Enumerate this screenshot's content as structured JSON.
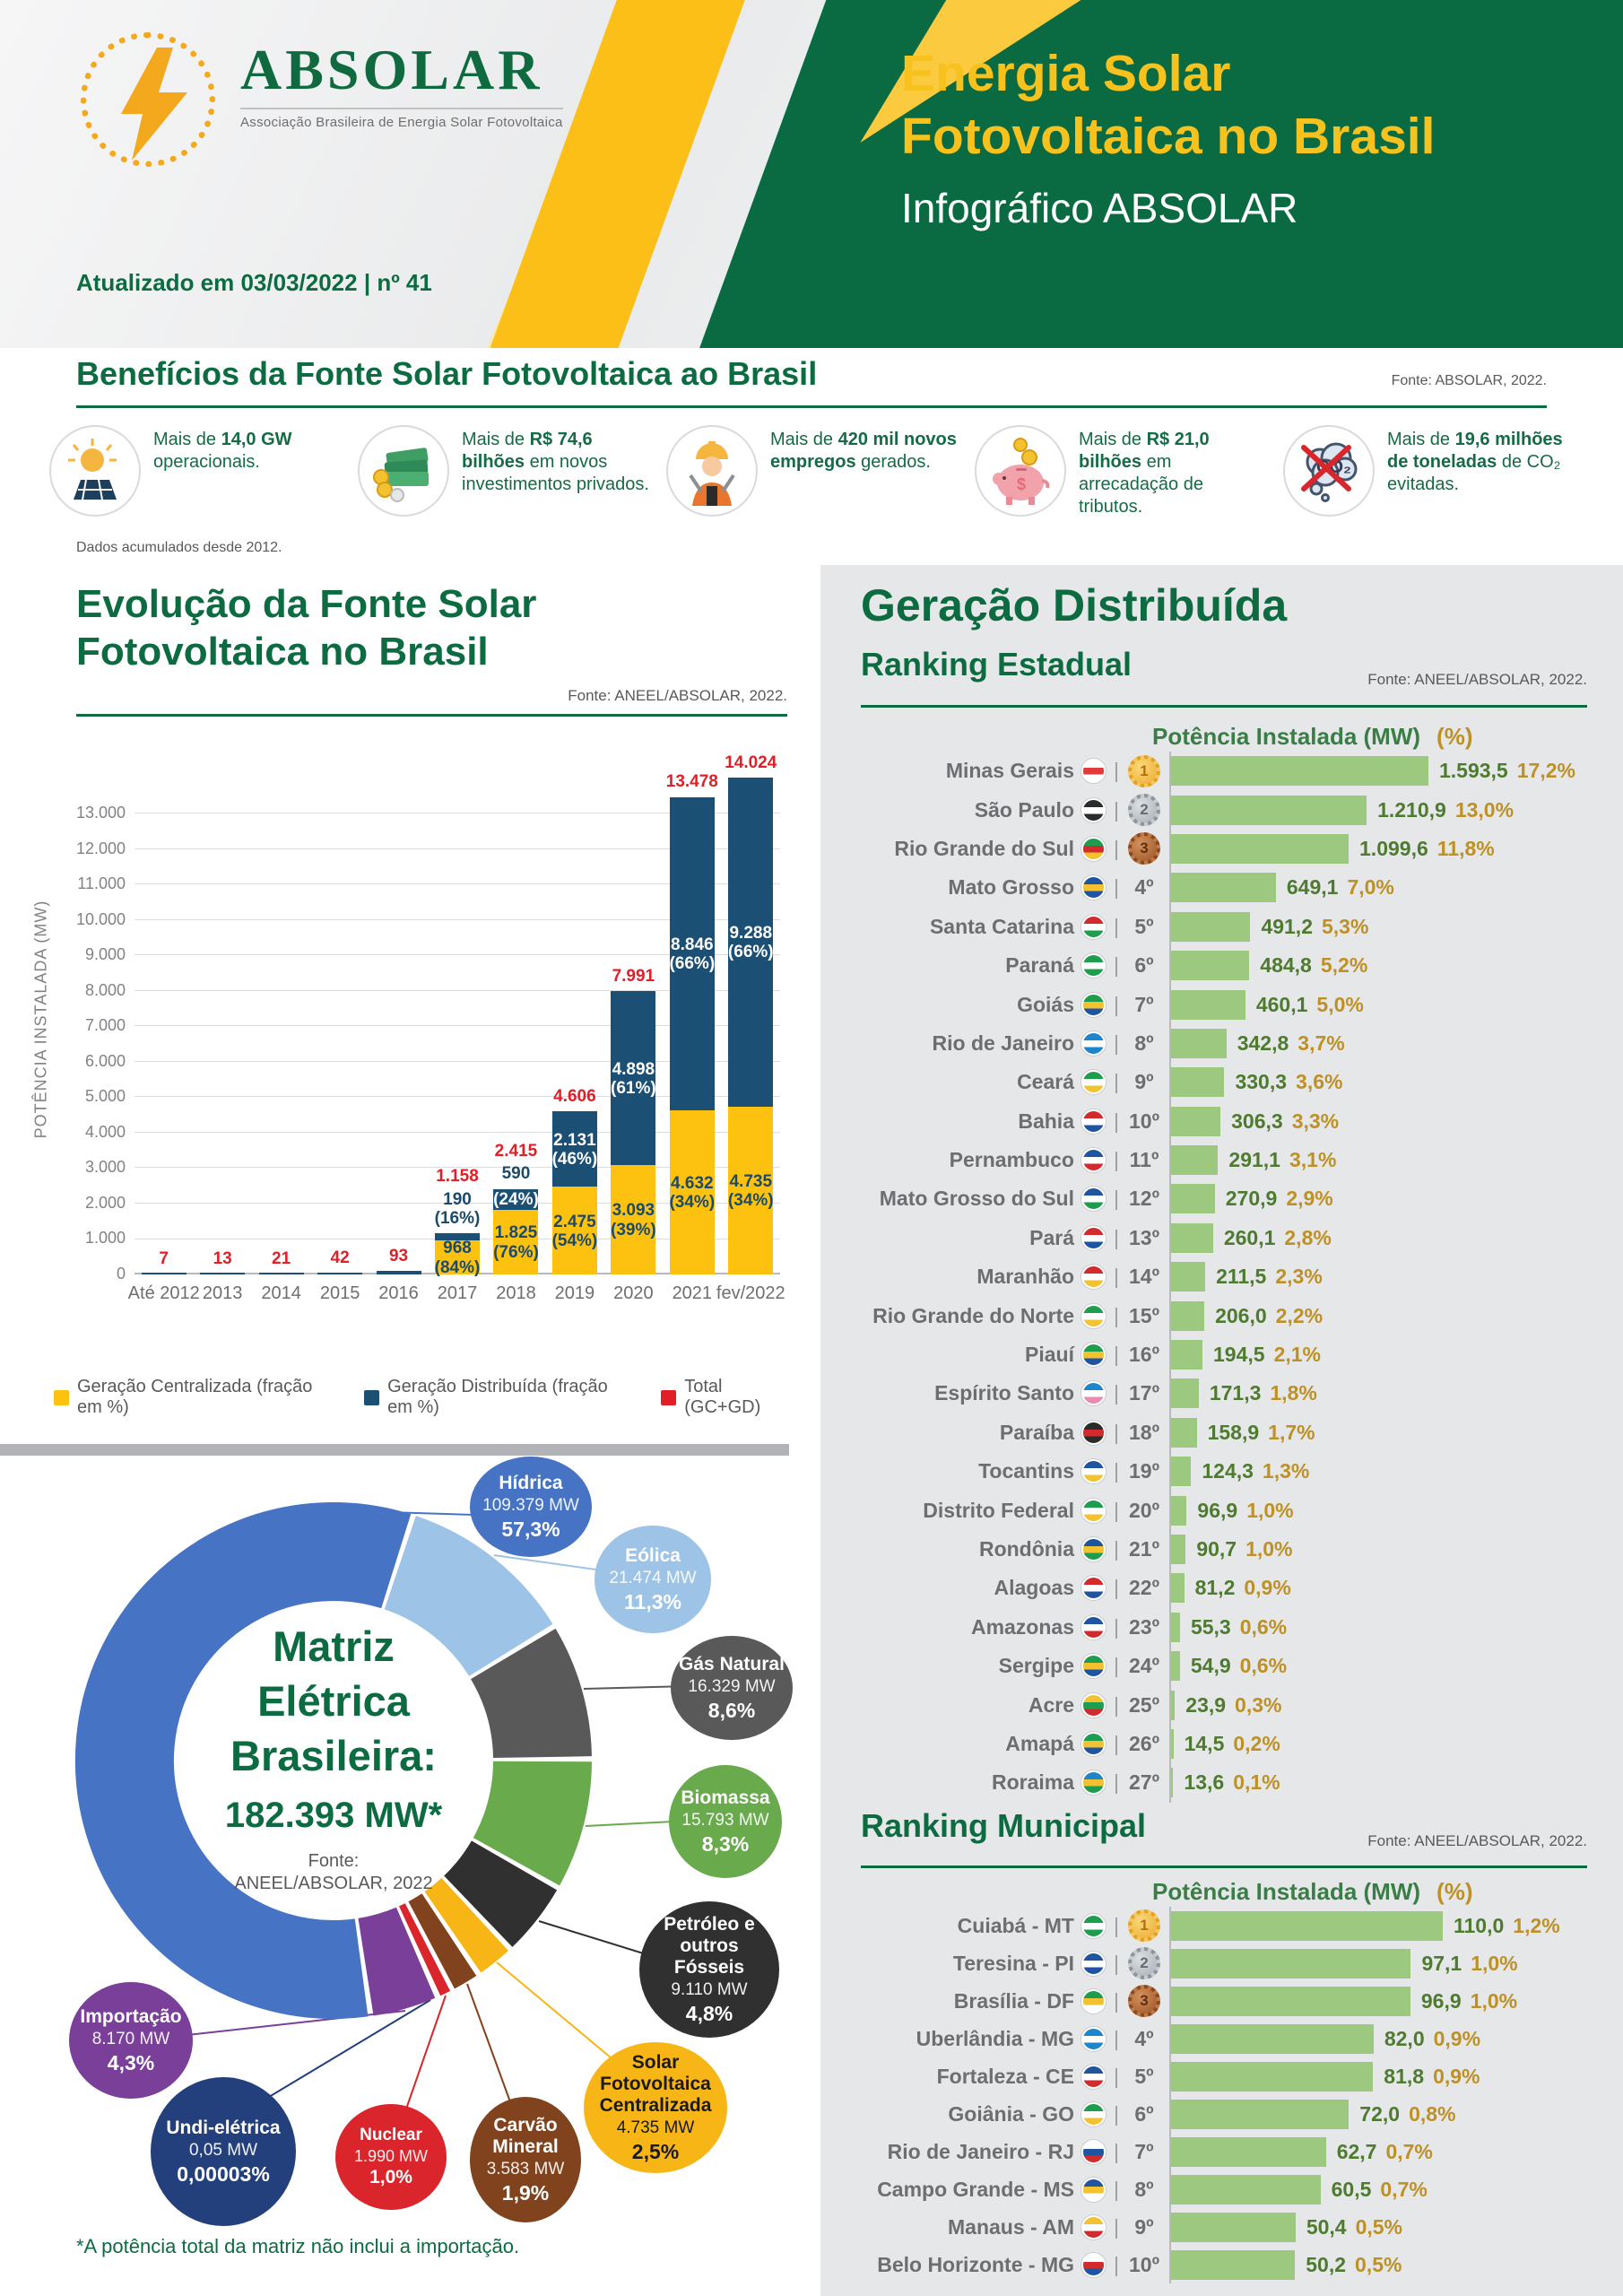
{
  "header": {
    "logo_name": "ABSOLAR",
    "logo_subtitle": "Associação Brasileira de Energia Solar Fotovoltaica",
    "updated": "Atualizado em 03/03/2022 | nº 41",
    "title_line1": "Energia Solar",
    "title_line2": "Fotovoltaica no Brasil",
    "title_line3": "Infográfico ABSOLAR",
    "brand_green": "#0a6a41",
    "brand_yellow": "#fbbf17"
  },
  "benefits": {
    "heading": "Benefícios da Fonte Solar Fotovoltaica ao Brasil",
    "source": "Fonte: ABSOLAR, 2022.",
    "note": "Dados acumulados desde 2012.",
    "items": [
      {
        "icon": "solar-panel-sun-icon",
        "segments": [
          {
            "t": "Mais de ",
            "b": false
          },
          {
            "t": "14,0 GW",
            "b": true
          },
          {
            "t": " operacionais.",
            "b": false
          }
        ]
      },
      {
        "icon": "money-stack-icon",
        "segments": [
          {
            "t": "Mais de ",
            "b": false
          },
          {
            "t": "R$ 74,6 bilhões",
            "b": true
          },
          {
            "t": " em novos investimentos privados.",
            "b": false
          }
        ]
      },
      {
        "icon": "worker-icon",
        "segments": [
          {
            "t": "Mais de ",
            "b": false
          },
          {
            "t": "420 mil novos empregos",
            "b": true
          },
          {
            "t": " gerados.",
            "b": false
          }
        ]
      },
      {
        "icon": "piggy-bank-icon",
        "segments": [
          {
            "t": "Mais de ",
            "b": false
          },
          {
            "t": "R$ 21,0 bilhões",
            "b": true
          },
          {
            "t": " em arrecadação de tributos.",
            "b": false
          }
        ]
      },
      {
        "icon": "co2-avoided-icon",
        "segments": [
          {
            "t": "Mais de ",
            "b": false
          },
          {
            "t": "19,6 milhões de toneladas",
            "b": true
          },
          {
            "t": " de CO₂ evitadas.",
            "b": false
          }
        ]
      }
    ]
  },
  "evolution": {
    "heading_line1": "Evolução da Fonte Solar",
    "heading_line2": "Fotovoltaica no Brasil",
    "source": "Fonte: ANEEL/ABSOLAR, 2022.",
    "chart_data": {
      "type": "bar",
      "stacked": true,
      "title": "Evolução da Fonte Solar Fotovoltaica no Brasil",
      "xlabel": "",
      "ylabel": "POTÊNCIA INSTALADA  (MW)",
      "ylim": [
        0,
        14200
      ],
      "y_tick_step": 1000,
      "y_tick_max": 13000,
      "grid": true,
      "legend_position": "bottom",
      "categories": [
        "Até 2012",
        "2013",
        "2014",
        "2015",
        "2016",
        "2017",
        "2018",
        "2019",
        "2020",
        "2021",
        "fev/2022"
      ],
      "series": [
        {
          "name": "Geração Centralizada (fração em %)",
          "color": "#fdc20f",
          "values": [
            0,
            0,
            0,
            0,
            0,
            968,
            1825,
            2475,
            3093,
            4632,
            4735
          ],
          "labels": [
            "",
            "",
            "",
            "",
            "",
            "968",
            "1.825",
            "2.475",
            "3.093",
            "4.632",
            "4.735"
          ],
          "pcts": [
            "",
            "",
            "",
            "",
            "",
            "(84%)",
            "(76%)",
            "(54%)",
            "(39%)",
            "(34%)",
            "(34%)"
          ]
        },
        {
          "name": "Geração Distribuída (fração em %)",
          "color": "#1c4f74",
          "values": [
            0,
            0,
            0,
            0,
            0,
            190,
            590,
            2131,
            4898,
            8846,
            9288
          ],
          "labels": [
            "",
            "",
            "",
            "",
            "",
            "190",
            "590",
            "2.131",
            "4.898",
            "8.846",
            "9.288"
          ],
          "pcts": [
            "",
            "",
            "",
            "",
            "",
            "(16%)",
            "(24%)",
            "(46%)",
            "(61%)",
            "(66%)",
            "(66%)"
          ]
        }
      ],
      "totals": {
        "name": "Total (GC+GD)",
        "color": "#e21e26",
        "values": [
          7,
          13,
          21,
          42,
          93,
          1158,
          2415,
          4606,
          7991,
          13478,
          14024
        ],
        "labels": [
          "7",
          "13",
          "21",
          "42",
          "93",
          "1.158",
          "2.415",
          "4.606",
          "7.991",
          "13.478",
          "14.024"
        ]
      }
    }
  },
  "matrix": {
    "chart_data": {
      "type": "pie",
      "donut": true,
      "title_lines": [
        "Matriz",
        "Elétrica",
        "Brasileira:"
      ],
      "total_label": "182.393 MW*",
      "source_line1": "Fonte:",
      "source_line2": "ANEEL/ABSOLAR, 2022",
      "footnote": "*A potência total da matriz não inclui a importação.",
      "start_angle_deg": 18,
      "segments": [
        {
          "id": "hidrica",
          "label": "Hídrica",
          "mw": "109.379 MW",
          "pct": "57,3%",
          "value": 57.3,
          "color": "#4673c4"
        },
        {
          "id": "eolica",
          "label": "Eólica",
          "mw": "21.474 MW",
          "pct": "11,3%",
          "value": 11.3,
          "color": "#9dc3e6"
        },
        {
          "id": "gas",
          "label": "Gás Natural",
          "mw": "16.329 MW",
          "pct": "8,6%",
          "value": 8.6,
          "color": "#595959"
        },
        {
          "id": "biomassa",
          "label": "Biomassa",
          "mw": "15.793 MW",
          "pct": "8,3%",
          "value": 8.3,
          "color": "#69aa4c"
        },
        {
          "id": "petroleo",
          "label": "Petróleo e outros Fósseis",
          "mw": "9.110 MW",
          "pct": "4,8%",
          "value": 4.8,
          "color": "#303030"
        },
        {
          "id": "solar",
          "label": "Solar Fotovoltaica Centralizada",
          "mw": "4.735 MW",
          "pct": "2,5%",
          "value": 2.5,
          "color": "#f7b516"
        },
        {
          "id": "carvao",
          "label": "Carvão Mineral",
          "mw": "3.583 MW",
          "pct": "1,9%",
          "value": 1.9,
          "color": "#80431d"
        },
        {
          "id": "nuclear",
          "label": "Nuclear",
          "mw": "1.990 MW",
          "pct": "1,0%",
          "value": 1.0,
          "color": "#d9252b"
        },
        {
          "id": "undi",
          "label": "Undi-elétrica",
          "mw": "0,05 MW",
          "pct": "0,00003%",
          "value": 0,
          "color": "#24407c"
        },
        {
          "id": "importacao",
          "label": "Importação",
          "mw": "8.170 MW",
          "pct": "4,3%",
          "value": 4.3,
          "color": "#7a3f98"
        }
      ]
    }
  },
  "distributed": {
    "heading": "Geração Distribuída",
    "state_ranking": {
      "title": "Ranking Estadual",
      "source": "Fonte: ANEEL/ABSOLAR, 2022.",
      "col_mw": "Potência Instalada (MW)",
      "col_pct": "(%)",
      "rows": [
        {
          "name": "Minas Gerais",
          "rank": 1,
          "mw": 1593.5,
          "mw_label": "1.593,5",
          "pct": "17,2%",
          "flag": [
            "#ffffff",
            "#e03a3a",
            "#ffffff"
          ]
        },
        {
          "name": "São Paulo",
          "rank": 2,
          "mw": 1210.9,
          "mw_label": "1.210,9",
          "pct": "13,0%",
          "flag": [
            "#2b2b2b",
            "#ffffff",
            "#2b2b2b"
          ]
        },
        {
          "name": "Rio Grande do Sul",
          "rank": 3,
          "mw": 1099.6,
          "mw_label": "1.099,6",
          "pct": "11,8%",
          "flag": [
            "#1f9d4e",
            "#d12b2e",
            "#f2c230"
          ]
        },
        {
          "name": "Mato Grosso",
          "rank": 4,
          "mw": 649.1,
          "mw_label": "649,1",
          "pct": "7,0%",
          "flag": [
            "#1e54a0",
            "#f2c230",
            "#1e54a0"
          ]
        },
        {
          "name": "Santa Catarina",
          "rank": 5,
          "mw": 491.2,
          "mw_label": "491,2",
          "pct": "5,3%",
          "flag": [
            "#d12b2e",
            "#ffffff",
            "#1f9d4e"
          ]
        },
        {
          "name": "Paraná",
          "rank": 6,
          "mw": 484.8,
          "mw_label": "484,8",
          "pct": "5,2%",
          "flag": [
            "#1f9d4e",
            "#ffffff",
            "#1f9d4e"
          ]
        },
        {
          "name": "Goiás",
          "rank": 7,
          "mw": 460.1,
          "mw_label": "460,1",
          "pct": "5,0%",
          "flag": [
            "#1f9d4e",
            "#f2c230",
            "#1e54a0"
          ]
        },
        {
          "name": "Rio de Janeiro",
          "rank": 8,
          "mw": 342.8,
          "mw_label": "342,8",
          "pct": "3,7%",
          "flag": [
            "#1e86c8",
            "#ffffff",
            "#1e86c8"
          ]
        },
        {
          "name": "Ceará",
          "rank": 9,
          "mw": 330.3,
          "mw_label": "330,3",
          "pct": "3,6%",
          "flag": [
            "#1f9d4e",
            "#ffffff",
            "#f2c230"
          ]
        },
        {
          "name": "Bahia",
          "rank": 10,
          "mw": 306.3,
          "mw_label": "306,3",
          "pct": "3,3%",
          "flag": [
            "#d12b2e",
            "#ffffff",
            "#1e54a0"
          ]
        },
        {
          "name": "Pernambuco",
          "rank": 11,
          "mw": 291.1,
          "mw_label": "291,1",
          "pct": "3,1%",
          "flag": [
            "#1e54a0",
            "#ffffff",
            "#d12b2e"
          ]
        },
        {
          "name": "Mato Grosso do Sul",
          "rank": 12,
          "mw": 270.9,
          "mw_label": "270,9",
          "pct": "2,9%",
          "flag": [
            "#1e54a0",
            "#ffffff",
            "#1f9d4e"
          ]
        },
        {
          "name": "Pará",
          "rank": 13,
          "mw": 260.1,
          "mw_label": "260,1",
          "pct": "2,8%",
          "flag": [
            "#d12b2e",
            "#ffffff",
            "#1e54a0"
          ]
        },
        {
          "name": "Maranhão",
          "rank": 14,
          "mw": 211.5,
          "mw_label": "211,5",
          "pct": "2,3%",
          "flag": [
            "#d12b2e",
            "#ffffff",
            "#f2c230"
          ]
        },
        {
          "name": "Rio Grande do Norte",
          "rank": 15,
          "mw": 206.0,
          "mw_label": "206,0",
          "pct": "2,2%",
          "flag": [
            "#1f9d4e",
            "#ffffff",
            "#f2c230"
          ]
        },
        {
          "name": "Piauí",
          "rank": 16,
          "mw": 194.5,
          "mw_label": "194,5",
          "pct": "2,1%",
          "flag": [
            "#1f9d4e",
            "#f2c230",
            "#1e54a0"
          ]
        },
        {
          "name": "Espírito Santo",
          "rank": 17,
          "mw": 171.3,
          "mw_label": "171,3",
          "pct": "1,8%",
          "flag": [
            "#1e86c8",
            "#ffffff",
            "#e88bb0"
          ]
        },
        {
          "name": "Paraíba",
          "rank": 18,
          "mw": 158.9,
          "mw_label": "158,9",
          "pct": "1,7%",
          "flag": [
            "#2b2b2b",
            "#d12b2e",
            "#2b2b2b"
          ]
        },
        {
          "name": "Tocantins",
          "rank": 19,
          "mw": 124.3,
          "mw_label": "124,3",
          "pct": "1,3%",
          "flag": [
            "#1e54a0",
            "#ffffff",
            "#f2c230"
          ]
        },
        {
          "name": "Distrito Federal",
          "rank": 20,
          "mw": 96.9,
          "mw_label": "96,9",
          "pct": "1,0%",
          "flag": [
            "#1f9d4e",
            "#ffffff",
            "#f2c230"
          ]
        },
        {
          "name": "Rondônia",
          "rank": 21,
          "mw": 90.7,
          "mw_label": "90,7",
          "pct": "1,0%",
          "flag": [
            "#1e54a0",
            "#f2c230",
            "#1f9d4e"
          ]
        },
        {
          "name": "Alagoas",
          "rank": 22,
          "mw": 81.2,
          "mw_label": "81,2",
          "pct": "0,9%",
          "flag": [
            "#d12b2e",
            "#ffffff",
            "#1e54a0"
          ]
        },
        {
          "name": "Amazonas",
          "rank": 23,
          "mw": 55.3,
          "mw_label": "55,3",
          "pct": "0,6%",
          "flag": [
            "#1e54a0",
            "#ffffff",
            "#d12b2e"
          ]
        },
        {
          "name": "Sergipe",
          "rank": 24,
          "mw": 54.9,
          "mw_label": "54,9",
          "pct": "0,6%",
          "flag": [
            "#1f9d4e",
            "#f2c230",
            "#1e54a0"
          ]
        },
        {
          "name": "Acre",
          "rank": 25,
          "mw": 23.9,
          "mw_label": "23,9",
          "pct": "0,3%",
          "flag": [
            "#f2c230",
            "#1f9d4e",
            "#d12b2e"
          ]
        },
        {
          "name": "Amapá",
          "rank": 26,
          "mw": 14.5,
          "mw_label": "14,5",
          "pct": "0,2%",
          "flag": [
            "#1f9d4e",
            "#f2c230",
            "#1e54a0"
          ]
        },
        {
          "name": "Roraima",
          "rank": 27,
          "mw": 13.6,
          "mw_label": "13,6",
          "pct": "0,1%",
          "flag": [
            "#1e86c8",
            "#f2c230",
            "#1f9d4e"
          ]
        }
      ]
    },
    "municipal_ranking": {
      "title": "Ranking Municipal",
      "source": "Fonte: ANEEL/ABSOLAR, 2022.",
      "col_mw": "Potência Instalada (MW)",
      "col_pct": "(%)",
      "rows": [
        {
          "name": "Cuiabá - MT",
          "rank": 1,
          "mw": 110.0,
          "mw_label": "110,0",
          "pct": "1,2%",
          "flag": [
            "#1f9d4e",
            "#ffffff",
            "#1f9d4e"
          ]
        },
        {
          "name": "Teresina - PI",
          "rank": 2,
          "mw": 97.1,
          "mw_label": "97,1",
          "pct": "1,0%",
          "flag": [
            "#1e54a0",
            "#ffffff",
            "#1e54a0"
          ]
        },
        {
          "name": "Brasília - DF",
          "rank": 3,
          "mw": 96.9,
          "mw_label": "96,9",
          "pct": "1,0%",
          "flag": [
            "#1f9d4e",
            "#f2c230",
            "#ffffff"
          ]
        },
        {
          "name": "Uberlândia - MG",
          "rank": 4,
          "mw": 82.0,
          "mw_label": "82,0",
          "pct": "0,9%",
          "flag": [
            "#1e86c8",
            "#ffffff",
            "#1e86c8"
          ]
        },
        {
          "name": "Fortaleza - CE",
          "rank": 5,
          "mw": 81.8,
          "mw_label": "81,8",
          "pct": "0,9%",
          "flag": [
            "#1e54a0",
            "#ffffff",
            "#d12b2e"
          ]
        },
        {
          "name": "Goiânia - GO",
          "rank": 6,
          "mw": 72.0,
          "mw_label": "72,0",
          "pct": "0,8%",
          "flag": [
            "#1f9d4e",
            "#ffffff",
            "#f2c230"
          ]
        },
        {
          "name": "Rio de Janeiro - RJ",
          "rank": 7,
          "mw": 62.7,
          "mw_label": "62,7",
          "pct": "0,7%",
          "flag": [
            "#ffffff",
            "#1e54a0",
            "#d12b2e"
          ]
        },
        {
          "name": "Campo Grande - MS",
          "rank": 8,
          "mw": 60.5,
          "mw_label": "60,5",
          "pct": "0,7%",
          "flag": [
            "#1e54a0",
            "#f2c230",
            "#ffffff"
          ]
        },
        {
          "name": "Manaus - AM",
          "rank": 9,
          "mw": 50.4,
          "mw_label": "50,4",
          "pct": "0,5%",
          "flag": [
            "#f2c230",
            "#ffffff",
            "#d12b2e"
          ]
        },
        {
          "name": "Belo Horizonte - MG",
          "rank": 10,
          "mw": 50.2,
          "mw_label": "50,2",
          "pct": "0,5%",
          "flag": [
            "#ffffff",
            "#d12b2e",
            "#1e54a0"
          ]
        }
      ]
    }
  }
}
